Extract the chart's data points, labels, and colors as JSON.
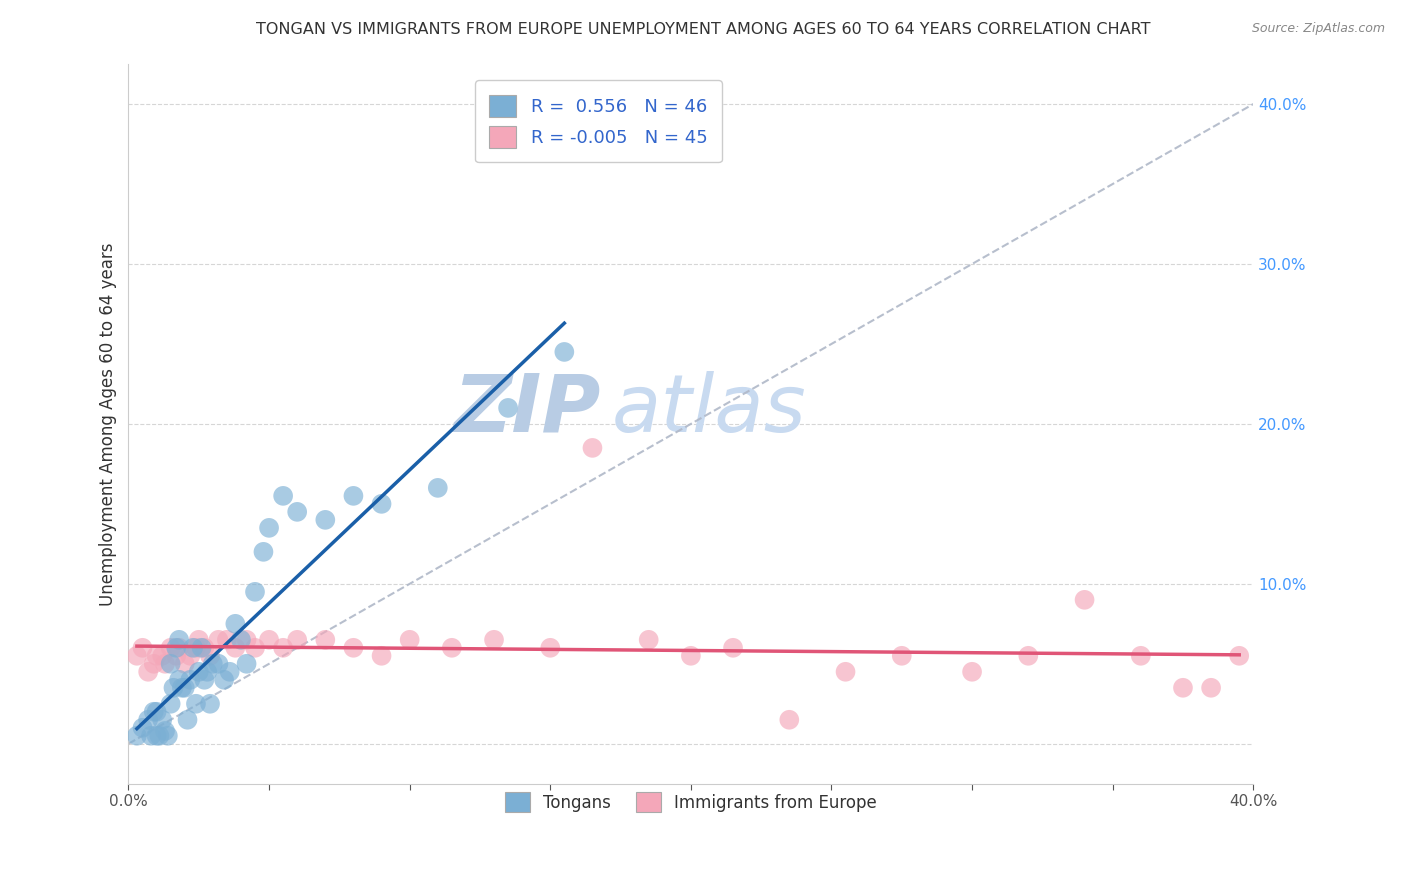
{
  "title": "TONGAN VS IMMIGRANTS FROM EUROPE UNEMPLOYMENT AMONG AGES 60 TO 64 YEARS CORRELATION CHART",
  "source": "Source: ZipAtlas.com",
  "ylabel": "Unemployment Among Ages 60 to 64 years",
  "xlim": [
    0.0,
    0.4
  ],
  "ylim": [
    -0.025,
    0.425
  ],
  "background_color": "#ffffff",
  "grid_color": "#cccccc",
  "tongan_color": "#7bafd4",
  "europe_color": "#f4a7b9",
  "tongan_line_color": "#1a5fa8",
  "europe_line_color": "#e05577",
  "tongan_R": 0.556,
  "tongan_N": 46,
  "europe_R": -0.005,
  "europe_N": 45,
  "dashed_line_color": "#b0b8c8",
  "watermark_zip_color": "#ccd8ea",
  "watermark_atlas_color": "#c8d8f0",
  "tongan_scatter_x": [
    0.003,
    0.005,
    0.007,
    0.008,
    0.009,
    0.01,
    0.01,
    0.011,
    0.012,
    0.013,
    0.014,
    0.015,
    0.015,
    0.016,
    0.017,
    0.018,
    0.018,
    0.019,
    0.02,
    0.021,
    0.022,
    0.023,
    0.024,
    0.025,
    0.026,
    0.027,
    0.028,
    0.029,
    0.03,
    0.032,
    0.034,
    0.036,
    0.038,
    0.04,
    0.042,
    0.045,
    0.048,
    0.05,
    0.055,
    0.06,
    0.07,
    0.08,
    0.09,
    0.11,
    0.135,
    0.155
  ],
  "tongan_scatter_y": [
    0.005,
    0.01,
    0.015,
    0.005,
    0.02,
    0.005,
    0.02,
    0.005,
    0.015,
    0.008,
    0.005,
    0.025,
    0.05,
    0.035,
    0.06,
    0.04,
    0.065,
    0.035,
    0.035,
    0.015,
    0.04,
    0.06,
    0.025,
    0.045,
    0.06,
    0.04,
    0.045,
    0.025,
    0.05,
    0.05,
    0.04,
    0.045,
    0.075,
    0.065,
    0.05,
    0.095,
    0.12,
    0.135,
    0.155,
    0.145,
    0.14,
    0.155,
    0.15,
    0.16,
    0.21,
    0.245
  ],
  "europe_scatter_x": [
    0.003,
    0.005,
    0.007,
    0.009,
    0.01,
    0.012,
    0.013,
    0.015,
    0.017,
    0.018,
    0.02,
    0.022,
    0.024,
    0.025,
    0.027,
    0.029,
    0.032,
    0.035,
    0.038,
    0.042,
    0.045,
    0.05,
    0.055,
    0.06,
    0.07,
    0.08,
    0.09,
    0.1,
    0.115,
    0.13,
    0.15,
    0.165,
    0.185,
    0.2,
    0.215,
    0.235,
    0.255,
    0.275,
    0.3,
    0.32,
    0.34,
    0.36,
    0.375,
    0.385,
    0.395
  ],
  "europe_scatter_y": [
    0.055,
    0.06,
    0.045,
    0.05,
    0.055,
    0.055,
    0.05,
    0.06,
    0.055,
    0.06,
    0.05,
    0.055,
    0.06,
    0.065,
    0.06,
    0.055,
    0.065,
    0.065,
    0.06,
    0.065,
    0.06,
    0.065,
    0.06,
    0.065,
    0.065,
    0.06,
    0.055,
    0.065,
    0.06,
    0.065,
    0.06,
    0.185,
    0.065,
    0.055,
    0.06,
    0.015,
    0.045,
    0.055,
    0.045,
    0.055,
    0.09,
    0.055,
    0.035,
    0.035,
    0.055
  ],
  "tongan_line_x": [
    0.003,
    0.155
  ],
  "europe_line_xrange": [
    0.003,
    0.395
  ]
}
